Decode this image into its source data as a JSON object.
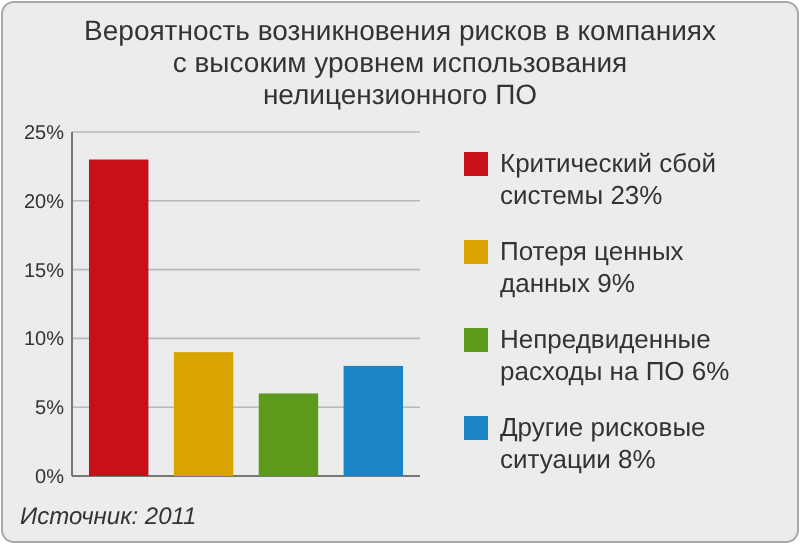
{
  "chart_data": {
    "type": "bar",
    "title": "Вероятность возникновения рисков в компаниях с высоким уровнем использования нелицензионного ПО",
    "categories": [
      null,
      null,
      null,
      null
    ],
    "series": [
      {
        "name": "Критический сбой системы 23%",
        "color": "#c8101a",
        "values": [
          23,
          null,
          null,
          null
        ]
      },
      {
        "name": "Потеря ценных данных 9%",
        "color": "#d9a400",
        "values": [
          null,
          9,
          null,
          null
        ]
      },
      {
        "name": "Непредвиденные расходы на ПО 6%",
        "color": "#5c9a1c",
        "values": [
          null,
          null,
          6,
          null
        ]
      },
      {
        "name": "Другие рисковые ситуации 8%",
        "color": "#1b86c6",
        "values": [
          null,
          null,
          null,
          8
        ]
      }
    ],
    "ylim": [
      0,
      25
    ],
    "yticks": [
      {
        "value": 0,
        "label": "0%"
      },
      {
        "value": 5,
        "label": "5%"
      },
      {
        "value": 10,
        "label": "10%"
      },
      {
        "value": 15,
        "label": "15%"
      },
      {
        "value": 20,
        "label": "20%"
      },
      {
        "value": 25,
        "label": "25%"
      }
    ],
    "grid": "y",
    "legend": "right",
    "annotations": [
      "Источник: 2011"
    ]
  }
}
